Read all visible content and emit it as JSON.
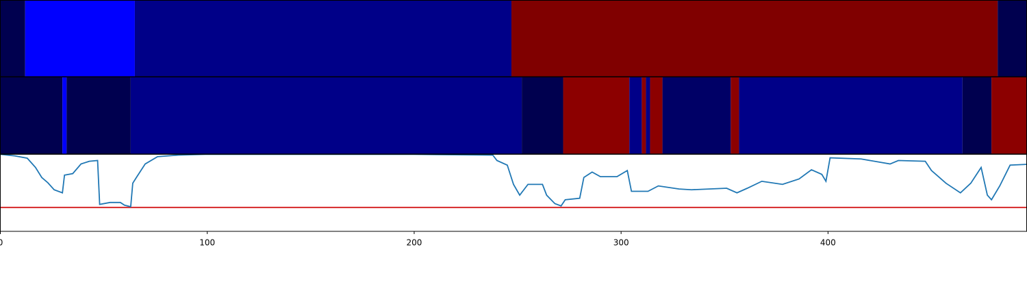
{
  "chart_data": [
    {
      "type": "segments",
      "xlim": [
        0,
        496
      ],
      "segments": [
        {
          "start": 0,
          "end": 12,
          "color": "#00004f"
        },
        {
          "start": 12,
          "end": 65,
          "color": "#0000ff"
        },
        {
          "start": 65,
          "end": 247,
          "color": "#000088"
        },
        {
          "start": 247,
          "end": 482,
          "color": "#800000"
        },
        {
          "start": 482,
          "end": 496,
          "color": "#00004f"
        }
      ]
    },
    {
      "type": "segments",
      "xlim": [
        0,
        496
      ],
      "segments": [
        {
          "start": 0,
          "end": 30,
          "color": "#00004f"
        },
        {
          "start": 30,
          "end": 32,
          "color": "#0000ff"
        },
        {
          "start": 32,
          "end": 63,
          "color": "#00004f"
        },
        {
          "start": 63,
          "end": 252,
          "color": "#000088"
        },
        {
          "start": 252,
          "end": 272,
          "color": "#00004f"
        },
        {
          "start": 272,
          "end": 304,
          "color": "#8c0000"
        },
        {
          "start": 304,
          "end": 310,
          "color": "#000088"
        },
        {
          "start": 310,
          "end": 312,
          "color": "#8c0000"
        },
        {
          "start": 312,
          "end": 314,
          "color": "#000088"
        },
        {
          "start": 314,
          "end": 320,
          "color": "#8c0000"
        },
        {
          "start": 320,
          "end": 353,
          "color": "#000066"
        },
        {
          "start": 353,
          "end": 357,
          "color": "#8c0000"
        },
        {
          "start": 357,
          "end": 465,
          "color": "#000088"
        },
        {
          "start": 465,
          "end": 479,
          "color": "#00004f"
        },
        {
          "start": 479,
          "end": 496,
          "color": "#8c0000"
        }
      ]
    },
    {
      "type": "line",
      "xlim": [
        0,
        496
      ],
      "ylim": [
        0,
        1
      ],
      "xticks": [
        0,
        100,
        200,
        300,
        400
      ],
      "color": "#1f77b4",
      "threshold": 0.31,
      "threshold_color": "#d62728",
      "x": [
        0,
        7,
        13,
        17,
        20,
        23,
        26,
        30,
        31,
        35,
        39,
        43,
        47,
        48,
        53,
        58,
        60,
        63,
        64,
        66,
        70,
        76,
        86,
        99,
        150,
        200,
        238,
        240,
        245,
        248,
        251,
        255,
        262,
        264,
        268,
        271,
        273,
        280,
        282,
        286,
        290,
        298,
        303,
        305,
        313,
        318,
        328,
        334,
        351,
        356,
        361,
        368,
        378,
        386,
        392,
        397,
        399,
        401,
        416,
        430,
        434,
        447,
        450,
        457,
        464,
        469,
        474,
        477,
        479,
        483,
        488,
        496
      ],
      "values": [
        1.0,
        0.98,
        0.95,
        0.83,
        0.7,
        0.63,
        0.54,
        0.5,
        0.73,
        0.75,
        0.875,
        0.91,
        0.92,
        0.35,
        0.375,
        0.375,
        0.34,
        0.32,
        0.625,
        0.71,
        0.875,
        0.97,
        0.99,
        1.0,
        1.0,
        1.0,
        0.99,
        0.92,
        0.86,
        0.61,
        0.47,
        0.61,
        0.61,
        0.47,
        0.36,
        0.33,
        0.41,
        0.43,
        0.7,
        0.77,
        0.71,
        0.71,
        0.79,
        0.52,
        0.52,
        0.59,
        0.55,
        0.54,
        0.56,
        0.5,
        0.56,
        0.65,
        0.61,
        0.68,
        0.8,
        0.74,
        0.65,
        0.955,
        0.94,
        0.875,
        0.92,
        0.91,
        0.79,
        0.625,
        0.5,
        0.625,
        0.83,
        0.47,
        0.41,
        0.59,
        0.86,
        0.87
      ]
    }
  ]
}
